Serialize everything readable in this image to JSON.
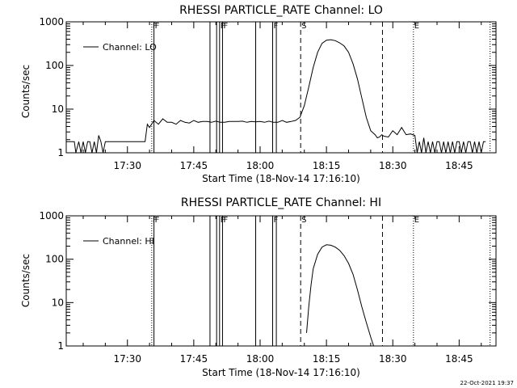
{
  "footer_date": "22-Oct-2021 19:37",
  "chart_data": [
    {
      "type": "line",
      "title": "RHESSI PARTICLE_RATE Channel: LO",
      "xlabel": "Start Time (18-Nov-14 17:16:10)",
      "ylabel": "Counts/sec",
      "yscale": "log",
      "ylim": [
        1,
        1000
      ],
      "xlim": [
        "17:16:10",
        "18:53:20"
      ],
      "xticks": [
        "17:30",
        "17:45",
        "18:00",
        "18:15",
        "18:30",
        "18:45"
      ],
      "yticks": [
        "1",
        "10",
        "100",
        "1000"
      ],
      "legend": "top-left",
      "grid": false,
      "series": [
        {
          "name": "Channel: LO",
          "x": [
            "17:16:10",
            "17:18:00",
            "17:18:20",
            "17:19:00",
            "17:19:30",
            "17:20:00",
            "17:20:30",
            "17:21:00",
            "17:21:30",
            "17:22:00",
            "17:22:30",
            "17:23:00",
            "17:23:30",
            "17:24:00",
            "17:24:30",
            "17:25:00",
            "17:26:00",
            "17:28:00",
            "17:30:00",
            "17:32:00",
            "17:34:00",
            "17:34:30",
            "17:35:00",
            "17:36:00",
            "17:37:00",
            "17:38:00",
            "17:39:00",
            "17:40:00",
            "17:41:00",
            "17:42:00",
            "17:43:00",
            "17:44:00",
            "17:45:00",
            "17:46:00",
            "17:47:00",
            "17:48:00",
            "17:49:00",
            "17:50:00",
            "17:51:00",
            "17:52:00",
            "17:53:00",
            "17:54:00",
            "17:55:00",
            "17:56:00",
            "17:57:00",
            "17:58:00",
            "17:59:00",
            "18:00:00",
            "18:01:00",
            "18:02:00",
            "18:03:00",
            "18:04:00",
            "18:05:00",
            "18:06:00",
            "18:07:00",
            "18:08:00",
            "18:09:00",
            "18:10:00",
            "18:11:00",
            "18:12:00",
            "18:13:00",
            "18:14:00",
            "18:15:00",
            "18:16:00",
            "18:17:00",
            "18:18:00",
            "18:19:00",
            "18:20:00",
            "18:21:00",
            "18:22:00",
            "18:23:00",
            "18:24:00",
            "18:25:00",
            "18:26:00",
            "18:26:30",
            "18:27:00",
            "18:27:30",
            "18:28:00",
            "18:29:00",
            "18:30:00",
            "18:31:00",
            "18:32:00",
            "18:33:00",
            "18:34:00",
            "18:35:00",
            "18:35:30",
            "18:36:00",
            "18:36:30",
            "18:37:00",
            "18:37:30",
            "18:38:00",
            "18:38:30",
            "18:39:00",
            "18:39:30",
            "18:40:00",
            "18:40:30",
            "18:41:00",
            "18:41:30",
            "18:42:00",
            "18:42:30",
            "18:43:00",
            "18:43:30",
            "18:44:00",
            "18:44:30",
            "18:45:00",
            "18:45:30",
            "18:46:00",
            "18:46:30",
            "18:47:00",
            "18:47:30",
            "18:48:00",
            "18:48:30",
            "18:49:00",
            "18:49:30",
            "18:50:00",
            "18:50:30",
            "18:51:00"
          ],
          "values": [
            1.8,
            1.8,
            1.0,
            1.8,
            1.0,
            1.8,
            1.0,
            1.8,
            1.8,
            1.0,
            1.8,
            1.0,
            2.5,
            1.8,
            1.0,
            1.8,
            1.8,
            1.8,
            1.8,
            1.8,
            1.8,
            4.5,
            3.8,
            5.5,
            4.5,
            6.0,
            5.0,
            5.0,
            4.5,
            5.5,
            5.0,
            4.8,
            5.5,
            5.0,
            5.2,
            5.2,
            5.0,
            5.3,
            5.0,
            5.0,
            5.2,
            5.2,
            5.2,
            5.3,
            5.0,
            5.2,
            5.1,
            5.2,
            5.0,
            5.3,
            5.0,
            5.0,
            5.5,
            5.0,
            5.2,
            5.5,
            6.5,
            12.0,
            32.0,
            90.0,
            200.0,
            320.0,
            380.0,
            390.0,
            370.0,
            330.0,
            280.0,
            200.0,
            110.0,
            50.0,
            18.0,
            6.5,
            3.2,
            2.6,
            2.2,
            2.3,
            2.6,
            2.4,
            2.3,
            3.2,
            2.6,
            3.8,
            2.6,
            2.7,
            2.5,
            1.0,
            1.8,
            1.0,
            2.2,
            1.0,
            1.8,
            1.0,
            1.8,
            1.0,
            1.8,
            1.8,
            1.0,
            1.8,
            1.0,
            1.8,
            1.0,
            1.8,
            1.0,
            1.8,
            1.8,
            1.0,
            1.8,
            1.0,
            1.8,
            1.8,
            1.0,
            1.8,
            1.0,
            1.8,
            1.0,
            1.8,
            1.8
          ]
        }
      ],
      "annotations": [
        {
          "label": "F",
          "time": "17:35:30",
          "style": "dotted"
        },
        {
          "label": "F",
          "time": "17:36:00",
          "style": "solid"
        },
        {
          "label": "",
          "time": "17:48:40",
          "style": "solid"
        },
        {
          "label": "",
          "time": "17:50:10",
          "style": "solid"
        },
        {
          "label": "F",
          "time": "17:50:50",
          "style": "solid"
        },
        {
          "label": "F",
          "time": "17:51:30",
          "style": "solid"
        },
        {
          "label": "",
          "time": "17:59:00",
          "style": "solid"
        },
        {
          "label": "F",
          "time": "18:02:50",
          "style": "solid"
        },
        {
          "label": "",
          "time": "18:03:40",
          "style": "solid"
        },
        {
          "label": "S",
          "time": "18:09:10",
          "style": "dashed"
        },
        {
          "label": "",
          "time": "18:27:40",
          "style": "dashed"
        },
        {
          "label": "E",
          "time": "18:34:40",
          "style": "dotted"
        },
        {
          "label": "",
          "time": "18:52:00",
          "style": "dotted"
        }
      ]
    },
    {
      "type": "line",
      "title": "RHESSI PARTICLE_RATE Channel: HI",
      "xlabel": "Start Time (18-Nov-14 17:16:10)",
      "ylabel": "Counts/sec",
      "yscale": "log",
      "ylim": [
        1,
        1000
      ],
      "xlim": [
        "17:16:10",
        "18:53:20"
      ],
      "xticks": [
        "17:30",
        "17:45",
        "18:00",
        "18:15",
        "18:30",
        "18:45"
      ],
      "yticks": [
        "1",
        "10",
        "100",
        "1000"
      ],
      "legend": "top-left",
      "grid": false,
      "series": [
        {
          "name": "Channel: HI",
          "x": [
            "18:10:30",
            "18:11:00",
            "18:11:30",
            "18:12:00",
            "18:13:00",
            "18:14:00",
            "18:15:00",
            "18:16:00",
            "18:17:00",
            "18:18:00",
            "18:19:00",
            "18:20:00",
            "18:21:00",
            "18:22:00",
            "18:23:00",
            "18:24:00",
            "18:25:00",
            "18:25:40"
          ],
          "values": [
            2.0,
            8.0,
            25.0,
            60.0,
            130.0,
            190.0,
            215.0,
            210.0,
            190.0,
            160.0,
            120.0,
            80.0,
            45.0,
            20.0,
            8.0,
            3.5,
            1.6,
            1.0
          ]
        }
      ],
      "annotations": [
        {
          "label": "F",
          "time": "17:35:30",
          "style": "dotted"
        },
        {
          "label": "F",
          "time": "17:36:00",
          "style": "solid"
        },
        {
          "label": "",
          "time": "17:48:40",
          "style": "solid"
        },
        {
          "label": "",
          "time": "17:50:10",
          "style": "solid"
        },
        {
          "label": "F",
          "time": "17:50:50",
          "style": "solid"
        },
        {
          "label": "F",
          "time": "17:51:30",
          "style": "solid"
        },
        {
          "label": "",
          "time": "17:59:00",
          "style": "solid"
        },
        {
          "label": "F",
          "time": "18:02:50",
          "style": "solid"
        },
        {
          "label": "",
          "time": "18:03:40",
          "style": "solid"
        },
        {
          "label": "S",
          "time": "18:09:10",
          "style": "dashed"
        },
        {
          "label": "",
          "time": "18:27:40",
          "style": "dashed"
        },
        {
          "label": "E",
          "time": "18:34:40",
          "style": "dotted"
        },
        {
          "label": "",
          "time": "18:52:00",
          "style": "dotted"
        }
      ]
    }
  ]
}
